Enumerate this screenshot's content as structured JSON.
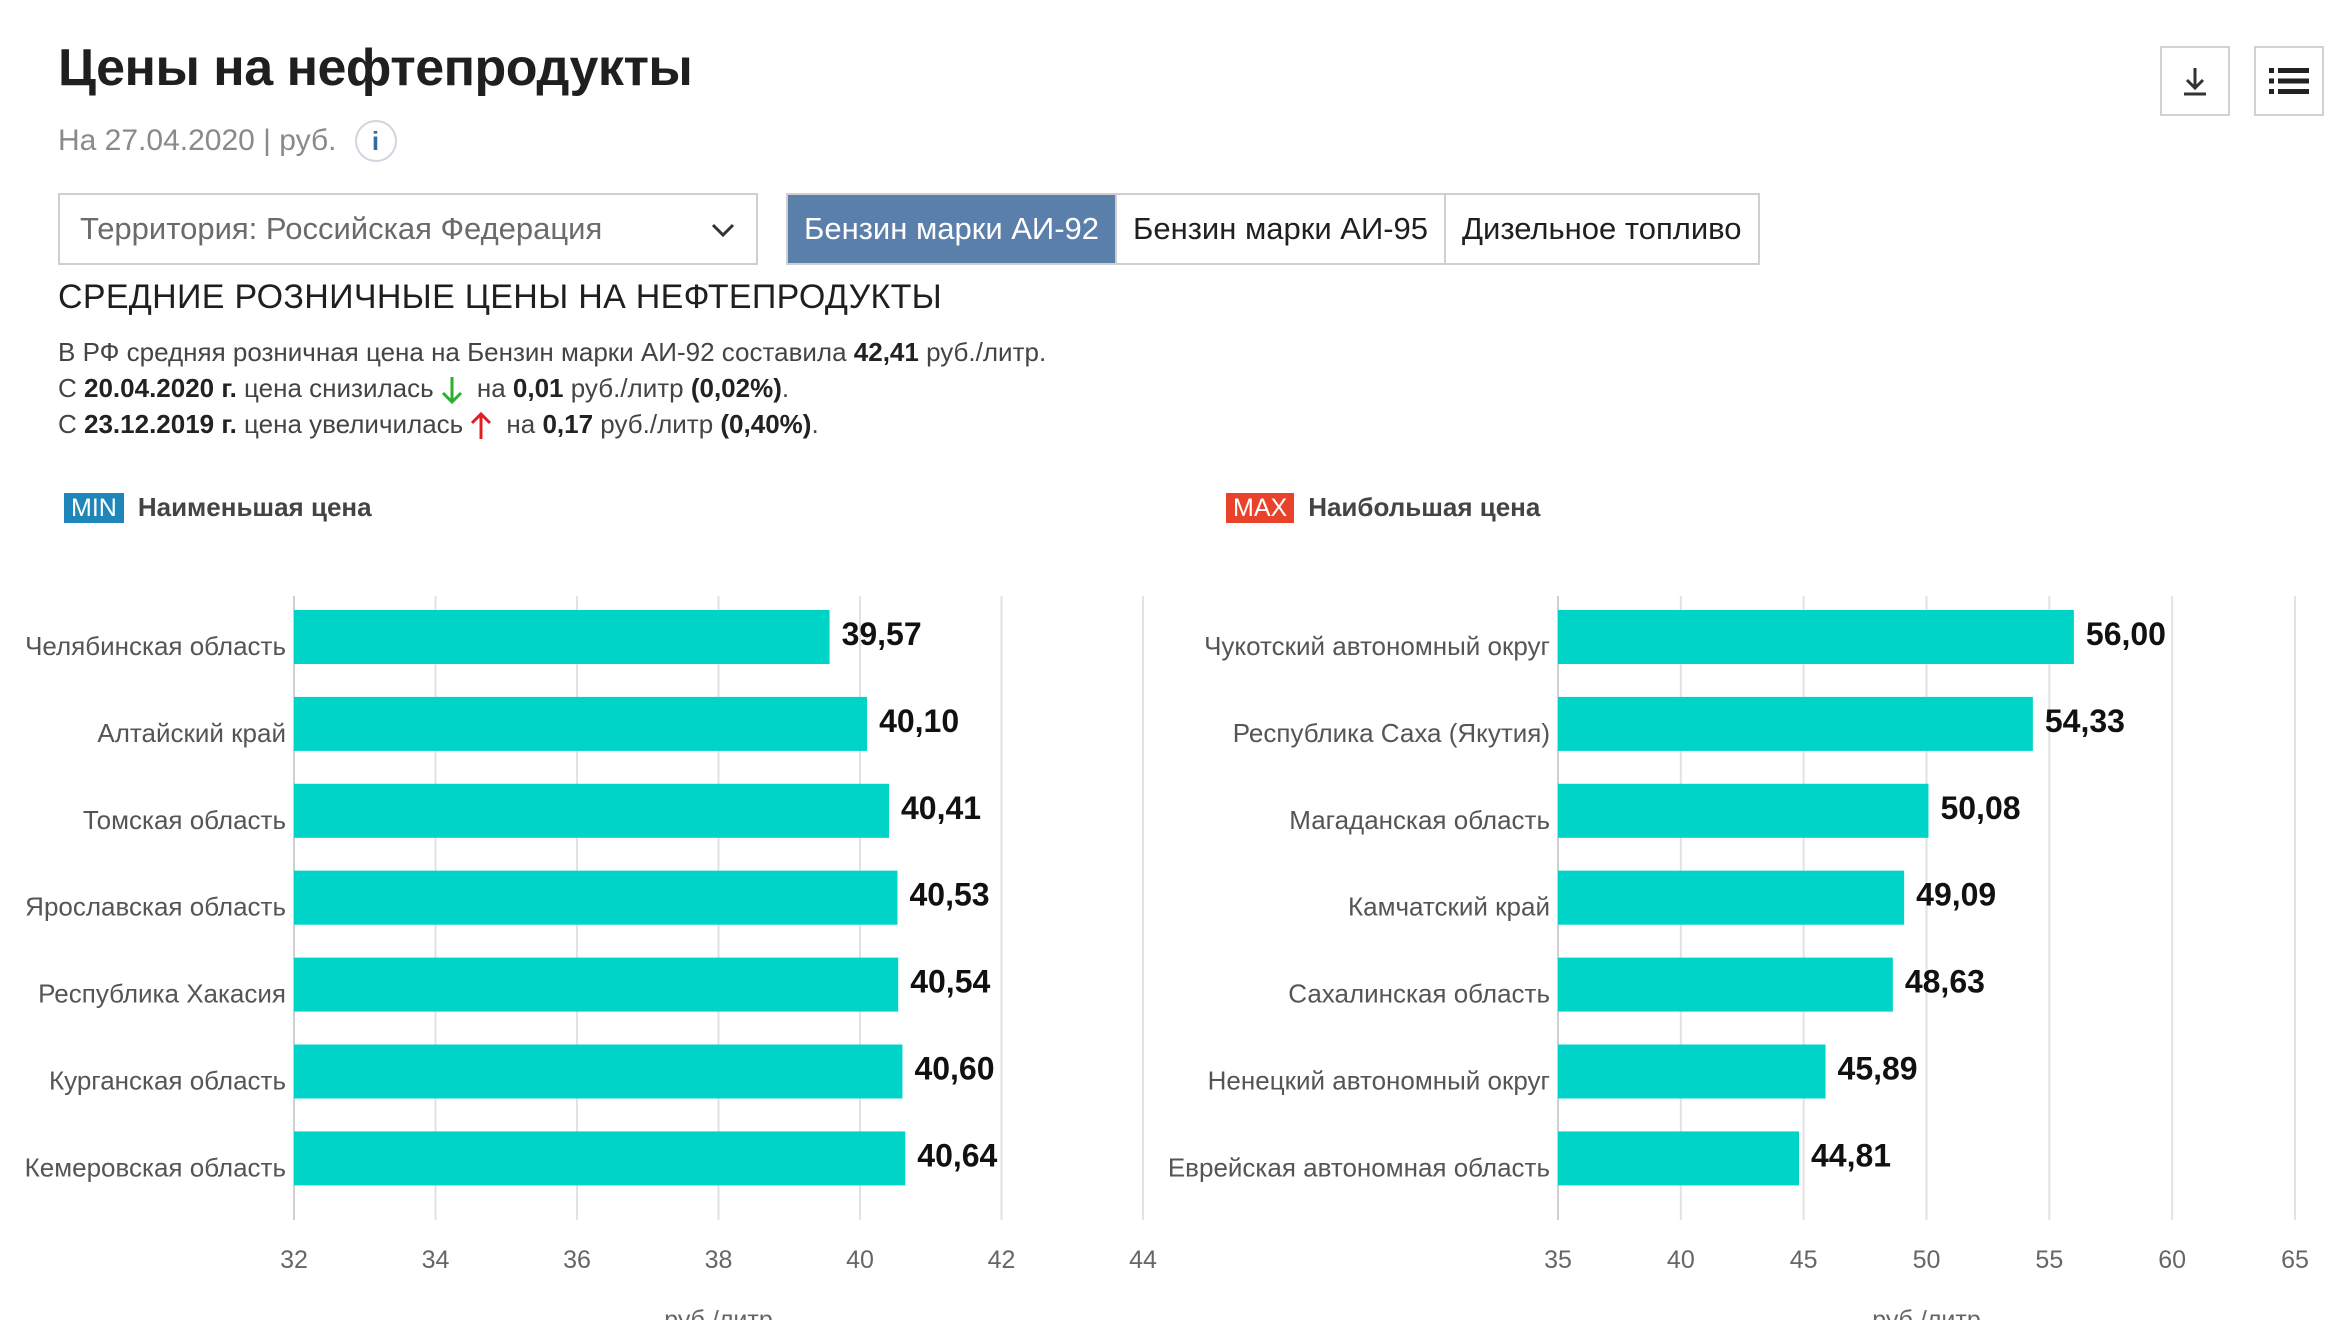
{
  "header": {
    "title": "Цены на нефтепродукты",
    "subtitle": "На 27.04.2020 | руб.",
    "info_icon": "info-icon",
    "info_glyph": "i"
  },
  "toolbar": {
    "download_icon": "download-icon",
    "menu_icon": "list-icon"
  },
  "filter": {
    "territory": "Территория: Российская  Федерация"
  },
  "fuel_tabs": [
    {
      "label": "Бензин марки АИ-92",
      "active": true
    },
    {
      "label": "Бензин марки АИ-95",
      "active": false
    },
    {
      "label": "Дизельное топливо",
      "active": false
    }
  ],
  "section": {
    "heading": "СРЕДНИЕ РОЗНИЧНЫЕ ЦЕНЫ НА НЕФТЕПРОДУКТЫ",
    "line1": {
      "pre": "В РФ средняя розничная цена на Бензин марки АИ-92 составила ",
      "value": "42,41",
      "post": " руб./литр."
    },
    "line2": {
      "pre": "С ",
      "date": "20.04.2020 г.",
      "mid": " цена снизилась",
      "na": " на ",
      "amount": "0,01",
      "unit": " руб./литр ",
      "pct": "(0,02%)",
      "end": "."
    },
    "line3": {
      "pre": "С ",
      "date": "23.12.2019 г.",
      "mid": " цена увеличилась",
      "na": " на ",
      "amount": "0,17",
      "unit": " руб./литр ",
      "pct": "(0,40%)",
      "end": "."
    }
  },
  "colors": {
    "bar": "#00d4c8",
    "min_badge": "#1e86b8",
    "max_badge": "#e8432a",
    "tab_active": "#5a7fab",
    "down": "#2bb02b",
    "up": "#e02020"
  },
  "legend": {
    "min": {
      "badge": "MIN",
      "label": "Наименьшая цена"
    },
    "max": {
      "badge": "MAX",
      "label": "Наибольшая цена"
    }
  },
  "chart_data": [
    {
      "type": "bar",
      "orientation": "horizontal",
      "title": "Наименьшая цена",
      "categories": [
        "Челябинская область",
        "Алтайский край",
        "Томская область",
        "Ярославская область",
        "Республика Хакасия",
        "Курганская область",
        "Кемеровская область"
      ],
      "values": [
        39.57,
        40.1,
        40.41,
        40.53,
        40.54,
        40.6,
        40.64
      ],
      "value_labels": [
        "39,57",
        "40,10",
        "40,41",
        "40,53",
        "40,54",
        "40,60",
        "40,64"
      ],
      "xlim": [
        32,
        44
      ],
      "xticks": [
        32,
        34,
        36,
        38,
        40,
        42,
        44
      ],
      "xlabel": "руб./литр",
      "grid": true
    },
    {
      "type": "bar",
      "orientation": "horizontal",
      "title": "Наибольшая цена",
      "categories": [
        "Чукотский автономный округ",
        "Республика Саха (Якутия)",
        "Магаданская область",
        "Камчатский край",
        "Сахалинская область",
        "Ненецкий автономный округ",
        "Еврейская автономная область"
      ],
      "values": [
        56.0,
        54.33,
        50.08,
        49.09,
        48.63,
        45.89,
        44.81
      ],
      "value_labels": [
        "56,00",
        "54,33",
        "50,08",
        "49,09",
        "48,63",
        "45,89",
        "44,81"
      ],
      "xlim": [
        35,
        65
      ],
      "xticks": [
        35,
        40,
        45,
        50,
        55,
        60,
        65
      ],
      "xlabel": "руб./литр",
      "grid": true
    }
  ]
}
